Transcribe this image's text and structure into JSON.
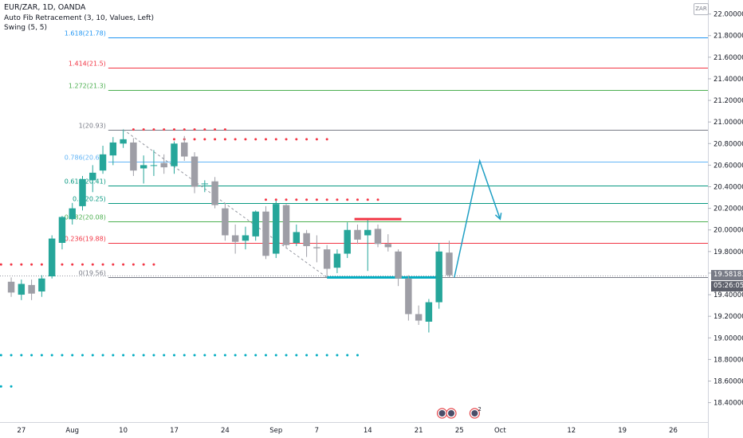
{
  "header": {
    "title": "EUR/ZAR, 1D, OANDA",
    "indicator_fib": "Auto Fib Retracement (3, 10, Values, Left)",
    "indicator_swing": "Swing (5, 5)",
    "currency": "ZAR"
  },
  "price_tags": {
    "last_price": "19.58183",
    "countdown": "05:26:05"
  },
  "colors": {
    "up": "#26a69a",
    "down": "#9e9ea6",
    "fib_0": "#787b86",
    "fib_0236": "#f23645",
    "fib_0382": "#4caf50",
    "fib_05": "#089981",
    "fib_0618": "#089981",
    "fib_0786": "#64b5f6",
    "fib_1": "#787b86",
    "fib_1272": "#4caf50",
    "fib_1414": "#f23645",
    "fib_1618": "#2196f3",
    "swing_high": "#f23645",
    "swing_low": "#00acc1",
    "projection": "#1e9fc4",
    "price_tag": "#787b86",
    "countdown_tag": "#5d606b"
  },
  "chart_data": {
    "type": "candlestick",
    "title": "EUR/ZAR, 1D, OANDA",
    "y_axis_ticks": [
      "22.00000",
      "21.80000",
      "21.60000",
      "21.40000",
      "21.20000",
      "21.00000",
      "20.80000",
      "20.60000",
      "20.40000",
      "20.20000",
      "20.00000",
      "19.80000",
      "19.60000",
      "19.40000",
      "19.20000",
      "19.00000",
      "18.80000",
      "18.60000",
      "18.40000"
    ],
    "x_axis_ticks": [
      {
        "label": "27",
        "x": -5
      },
      {
        "label": "Aug",
        "x": 0
      },
      {
        "label": "10",
        "x": 5
      },
      {
        "label": "17",
        "x": 10
      },
      {
        "label": "24",
        "x": 15
      },
      {
        "label": "Sep",
        "x": 20
      },
      {
        "label": "7",
        "x": 24
      },
      {
        "label": "14",
        "x": 29
      },
      {
        "label": "21",
        "x": 34
      },
      {
        "label": "25",
        "x": 38
      },
      {
        "label": "Oct",
        "x": 42
      },
      {
        "label": "12",
        "x": 49
      },
      {
        "label": "19",
        "x": 54
      },
      {
        "label": "26",
        "x": 59
      }
    ],
    "ylim": [
      18.22,
      22.13
    ],
    "xlim": [
      -7.1,
      62.4
    ],
    "candles": [
      {
        "x": -6,
        "o": 19.52,
        "h": 19.56,
        "l": 19.38,
        "c": 19.42
      },
      {
        "x": -5,
        "o": 19.4,
        "h": 19.54,
        "l": 19.35,
        "c": 19.5
      },
      {
        "x": -4,
        "o": 19.49,
        "h": 19.54,
        "l": 19.35,
        "c": 19.41
      },
      {
        "x": -3,
        "o": 19.43,
        "h": 19.58,
        "l": 19.38,
        "c": 19.55
      },
      {
        "x": -2,
        "o": 19.57,
        "h": 19.95,
        "l": 19.55,
        "c": 19.92
      },
      {
        "x": -1,
        "o": 19.88,
        "h": 20.13,
        "l": 19.82,
        "c": 20.12
      },
      {
        "x": 0,
        "o": 20.1,
        "h": 20.25,
        "l": 20.05,
        "c": 20.2
      },
      {
        "x": 1,
        "o": 20.22,
        "h": 20.5,
        "l": 20.18,
        "c": 20.47
      },
      {
        "x": 2,
        "o": 20.46,
        "h": 20.6,
        "l": 20.35,
        "c": 20.53
      },
      {
        "x": 3,
        "o": 20.55,
        "h": 20.78,
        "l": 20.52,
        "c": 20.7
      },
      {
        "x": 4,
        "o": 20.69,
        "h": 20.86,
        "l": 20.6,
        "c": 20.81
      },
      {
        "x": 5,
        "o": 20.8,
        "h": 20.93,
        "l": 20.76,
        "c": 20.84
      },
      {
        "x": 6,
        "o": 20.81,
        "h": 20.85,
        "l": 20.5,
        "c": 20.55
      },
      {
        "x": 7,
        "o": 20.57,
        "h": 20.69,
        "l": 20.43,
        "c": 20.6
      },
      {
        "x": 8,
        "o": 20.6,
        "h": 20.74,
        "l": 20.5,
        "c": 20.6
      },
      {
        "x": 9,
        "o": 20.62,
        "h": 20.7,
        "l": 20.52,
        "c": 20.58
      },
      {
        "x": 10,
        "o": 20.59,
        "h": 20.82,
        "l": 20.52,
        "c": 20.8
      },
      {
        "x": 11,
        "o": 20.81,
        "h": 20.87,
        "l": 20.64,
        "c": 20.68
      },
      {
        "x": 12,
        "o": 20.68,
        "h": 20.72,
        "l": 20.34,
        "c": 20.4
      },
      {
        "x": 13,
        "o": 20.43,
        "h": 20.46,
        "l": 20.35,
        "c": 20.43
      },
      {
        "x": 14,
        "o": 20.45,
        "h": 20.49,
        "l": 20.2,
        "c": 20.23
      },
      {
        "x": 15,
        "o": 20.2,
        "h": 20.25,
        "l": 19.9,
        "c": 19.95
      },
      {
        "x": 16,
        "o": 19.95,
        "h": 20.05,
        "l": 19.78,
        "c": 19.89
      },
      {
        "x": 17,
        "o": 19.9,
        "h": 20.03,
        "l": 19.82,
        "c": 19.95
      },
      {
        "x": 18,
        "o": 19.94,
        "h": 20.18,
        "l": 19.9,
        "c": 20.17
      },
      {
        "x": 19,
        "o": 20.17,
        "h": 20.22,
        "l": 19.73,
        "c": 19.76
      },
      {
        "x": 20,
        "o": 19.78,
        "h": 20.27,
        "l": 19.74,
        "c": 20.24
      },
      {
        "x": 21,
        "o": 20.23,
        "h": 20.24,
        "l": 19.83,
        "c": 19.86
      },
      {
        "x": 22,
        "o": 19.88,
        "h": 20.05,
        "l": 19.85,
        "c": 19.98
      },
      {
        "x": 23,
        "o": 19.97,
        "h": 20.0,
        "l": 19.75,
        "c": 19.85
      },
      {
        "x": 24,
        "o": 19.84,
        "h": 19.95,
        "l": 19.7,
        "c": 19.83
      },
      {
        "x": 25,
        "o": 19.82,
        "h": 19.86,
        "l": 19.56,
        "c": 19.64
      },
      {
        "x": 26,
        "o": 19.65,
        "h": 19.82,
        "l": 19.6,
        "c": 19.78
      },
      {
        "x": 27,
        "o": 19.78,
        "h": 20.07,
        "l": 19.74,
        "c": 20.0
      },
      {
        "x": 28,
        "o": 20.0,
        "h": 20.05,
        "l": 19.87,
        "c": 19.91
      },
      {
        "x": 29,
        "o": 19.95,
        "h": 20.09,
        "l": 19.62,
        "c": 20.0
      },
      {
        "x": 30,
        "o": 20.01,
        "h": 20.05,
        "l": 19.84,
        "c": 19.87
      },
      {
        "x": 31,
        "o": 19.87,
        "h": 19.96,
        "l": 19.8,
        "c": 19.84
      },
      {
        "x": 32,
        "o": 19.8,
        "h": 19.82,
        "l": 19.48,
        "c": 19.55
      },
      {
        "x": 33,
        "o": 19.55,
        "h": 19.58,
        "l": 19.16,
        "c": 19.22
      },
      {
        "x": 34,
        "o": 19.22,
        "h": 19.3,
        "l": 19.12,
        "c": 19.16
      },
      {
        "x": 35,
        "o": 19.15,
        "h": 19.36,
        "l": 19.05,
        "c": 19.33
      },
      {
        "x": 36,
        "o": 19.33,
        "h": 19.88,
        "l": 19.27,
        "c": 19.8
      },
      {
        "x": 37,
        "o": 19.79,
        "h": 19.9,
        "l": 19.56,
        "c": 19.58
      }
    ],
    "fib_levels": [
      {
        "label": "0(19.56)",
        "value": 19.56,
        "x_start": 4
      },
      {
        "label": "0.236(19.88)",
        "value": 19.88,
        "x_start": 4
      },
      {
        "label": "0.382(20.08)",
        "value": 20.08,
        "x_start": 4
      },
      {
        "label": "0.5(20.25)",
        "value": 20.25,
        "x_start": 4
      },
      {
        "label": "0.618(20.41)",
        "value": 20.41,
        "x_start": 4
      },
      {
        "label": "0.786(20.63)",
        "value": 20.63,
        "x_start": 4
      },
      {
        "label": "1(20.93)",
        "value": 20.93,
        "x_start": 4
      },
      {
        "label": "1.272(21.3)",
        "value": 21.3,
        "x_start": 4
      },
      {
        "label": "1.414(21.5)",
        "value": 21.5,
        "x_start": 4
      },
      {
        "label": "1.618(21.78)",
        "value": 21.78,
        "x_start": 4
      }
    ],
    "fib_trend_line": {
      "from": {
        "x": 5,
        "y": 20.93
      },
      "to": {
        "x": 25,
        "y": 19.56
      }
    },
    "swing_high_dots": [
      {
        "from": -7,
        "to": 8,
        "value": 19.68
      },
      {
        "from": 6,
        "to": 15,
        "value": 20.93
      },
      {
        "from": 10,
        "to": 25,
        "value": 20.84
      },
      {
        "from": 19,
        "to": 30,
        "value": 20.28
      }
    ],
    "swing_low_dots": [
      {
        "from": -7,
        "to": 28,
        "value": 18.84
      },
      {
        "from": -7,
        "to": -6,
        "value": 18.55
      }
    ],
    "breakout_line_red": {
      "from": 27.7,
      "to": 32.3,
      "value": 20.1
    },
    "support_line_teal": {
      "from": 25,
      "to": 36,
      "value": 19.56
    },
    "projection_path": [
      {
        "x": 37.5,
        "y": 19.56
      },
      {
        "x": 40.0,
        "y": 20.64
      },
      {
        "x": 42.0,
        "y": 20.1
      }
    ],
    "events": [
      {
        "label": "",
        "x": 36.3
      },
      {
        "label": "",
        "x": 37.2
      },
      {
        "label": "2",
        "x": 39.5
      }
    ]
  }
}
